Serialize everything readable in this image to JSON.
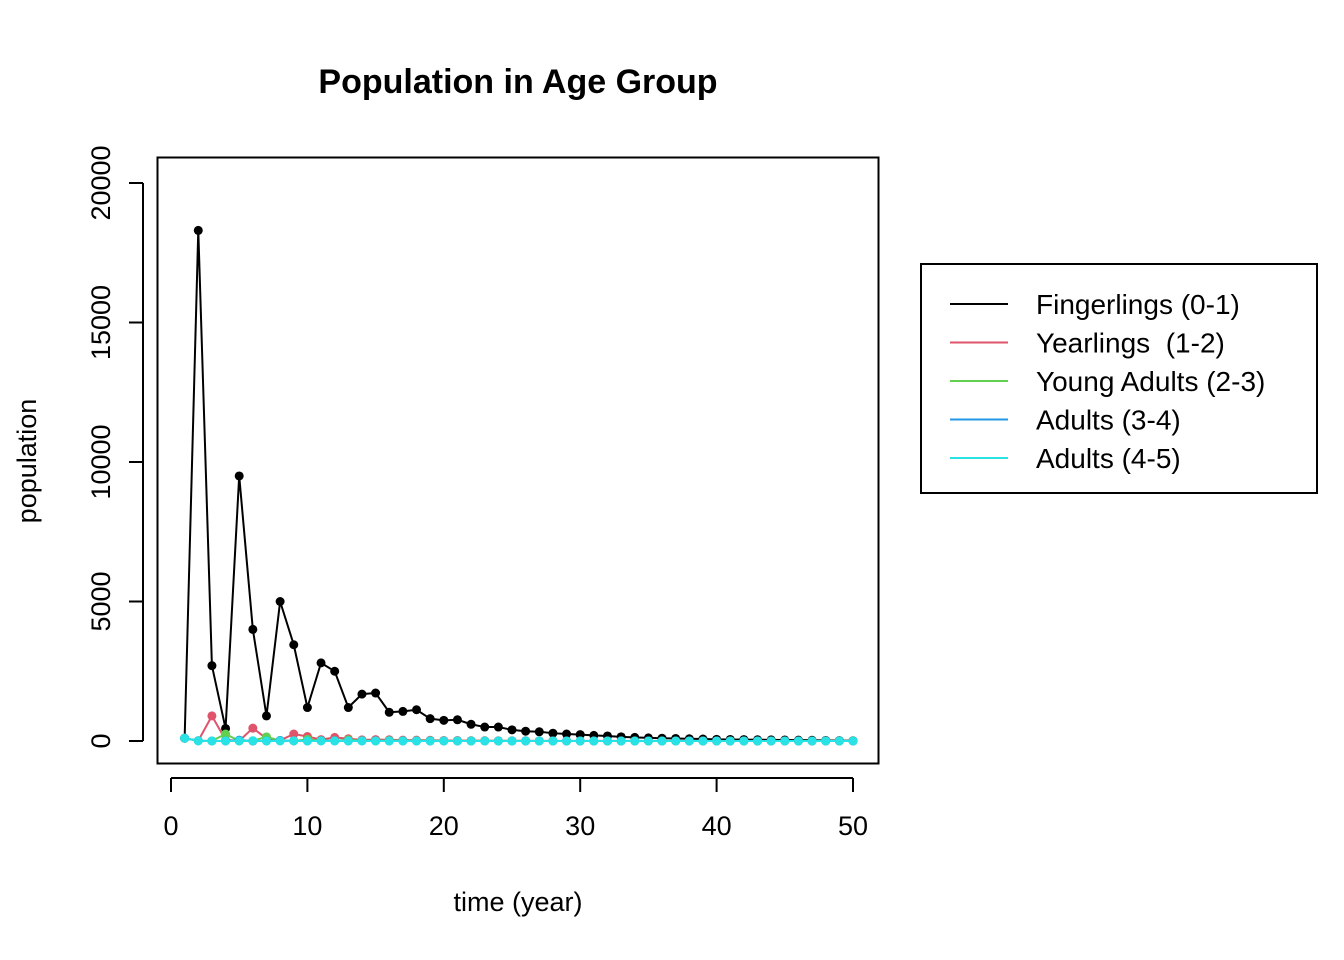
{
  "chart_data": {
    "type": "line",
    "title": "Population in Age Group",
    "xlabel": "time (year)",
    "ylabel": "population",
    "xlim": [
      0,
      50
    ],
    "ylim": [
      0,
      20000
    ],
    "xticks": [
      "0",
      "10",
      "20",
      "30",
      "40",
      "50"
    ],
    "yticks": [
      "0",
      "5000",
      "10000",
      "15000",
      "20000"
    ],
    "grid": false,
    "legend_position": "right",
    "x": [
      1,
      2,
      3,
      4,
      5,
      6,
      7,
      8,
      9,
      10,
      11,
      12,
      13,
      14,
      15,
      16,
      17,
      18,
      19,
      20,
      21,
      22,
      23,
      24,
      25,
      26,
      27,
      28,
      29,
      30,
      31,
      32,
      33,
      34,
      35,
      36,
      37,
      38,
      39,
      40,
      41,
      42,
      43,
      44,
      45,
      46,
      47,
      48,
      49,
      50
    ],
    "series": [
      {
        "name": "Fingerlings (0-1)",
        "color": "#000000",
        "values": [
          100,
          18300,
          2700,
          450,
          9500,
          4000,
          900,
          5000,
          3450,
          1200,
          2800,
          2500,
          1200,
          1680,
          1720,
          1030,
          1060,
          1120,
          800,
          740,
          760,
          600,
          500,
          500,
          400,
          350,
          330,
          280,
          250,
          230,
          200,
          180,
          150,
          130,
          110,
          100,
          90,
          80,
          70,
          60,
          55,
          50,
          45,
          40,
          35,
          30,
          25,
          20,
          15,
          10
        ]
      },
      {
        "name": "Yearlings  (1-2)",
        "color": "#DF536B",
        "values": [
          100,
          10,
          900,
          40,
          5,
          460,
          90,
          20,
          250,
          160,
          50,
          130,
          80,
          40,
          50,
          45,
          30,
          30,
          25,
          20,
          20,
          15,
          12,
          10,
          8,
          7,
          6,
          5,
          5,
          4,
          4,
          3,
          3,
          3,
          2,
          2,
          2,
          2,
          1,
          1,
          1,
          1,
          1,
          1,
          1,
          1,
          1,
          1,
          1,
          1
        ]
      },
      {
        "name": "Young Adults (2-3)",
        "color": "#61D04F",
        "values": [
          100,
          10,
          2,
          250,
          5,
          3,
          150,
          10,
          5,
          60,
          20,
          10,
          40,
          15,
          10,
          20,
          10,
          8,
          8,
          6,
          5,
          4,
          4,
          3,
          3,
          3,
          2,
          2,
          2,
          2,
          1,
          1,
          1,
          1,
          1,
          1,
          1,
          1,
          1,
          1,
          1,
          1,
          1,
          1,
          1,
          1,
          1,
          1,
          1,
          1
        ]
      },
      {
        "name": "Adults (3-4)",
        "color": "#2297E6",
        "values": [
          100,
          10,
          2,
          1,
          30,
          1,
          1,
          20,
          5,
          2,
          10,
          5,
          3,
          5,
          4,
          3,
          3,
          2,
          2,
          2,
          2,
          1,
          1,
          1,
          1,
          1,
          1,
          1,
          1,
          1,
          1,
          1,
          1,
          1,
          1,
          1,
          1,
          1,
          1,
          1,
          1,
          1,
          1,
          1,
          1,
          1,
          1,
          1,
          1,
          1
        ]
      },
      {
        "name": "Adults (4-5)",
        "color": "#28E2E5",
        "values": [
          100,
          5,
          2,
          1,
          1,
          10,
          1,
          1,
          8,
          2,
          1,
          4,
          2,
          1,
          2,
          1,
          1,
          1,
          1,
          1,
          1,
          1,
          1,
          1,
          1,
          1,
          1,
          1,
          1,
          1,
          1,
          1,
          1,
          1,
          1,
          1,
          1,
          1,
          1,
          1,
          1,
          1,
          1,
          1,
          1,
          1,
          1,
          1,
          1,
          1
        ]
      }
    ]
  }
}
